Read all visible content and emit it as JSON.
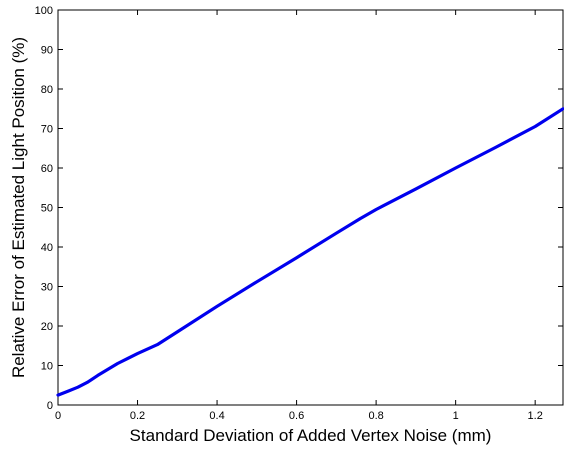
{
  "chart_data": {
    "type": "line",
    "title": "",
    "xlabel": "Standard Deviation of Added Vertex Noise (mm)",
    "ylabel": "Relative Error of Estimated Light Position (%)",
    "xlim": [
      0,
      1.27
    ],
    "ylim": [
      0,
      100
    ],
    "xticks": [
      0,
      0.2,
      0.4,
      0.6,
      0.8,
      1,
      1.2
    ],
    "xtick_labels": [
      "0",
      "0.2",
      "0.4",
      "0.6",
      "0.8",
      "1",
      "1.2"
    ],
    "yticks": [
      0,
      10,
      20,
      30,
      40,
      50,
      60,
      70,
      80,
      90,
      100
    ],
    "ytick_labels": [
      "0",
      "10",
      "20",
      "30",
      "40",
      "50",
      "60",
      "70",
      "80",
      "90",
      "100"
    ],
    "grid": false,
    "series": [
      {
        "color": "#0000ee",
        "x": [
          0,
          0.025,
          0.05,
          0.075,
          0.1,
          0.15,
          0.2,
          0.25,
          0.3,
          0.4,
          0.5,
          0.6,
          0.7,
          0.76,
          0.8,
          0.9,
          1.0,
          1.1,
          1.2,
          1.27
        ],
        "y": [
          2.5,
          3.5,
          4.5,
          5.8,
          7.5,
          10.5,
          13.0,
          15.3,
          18.5,
          25.0,
          31.2,
          37.3,
          43.5,
          47.2,
          49.5,
          54.7,
          60.0,
          65.2,
          70.5,
          75.0
        ]
      }
    ]
  }
}
